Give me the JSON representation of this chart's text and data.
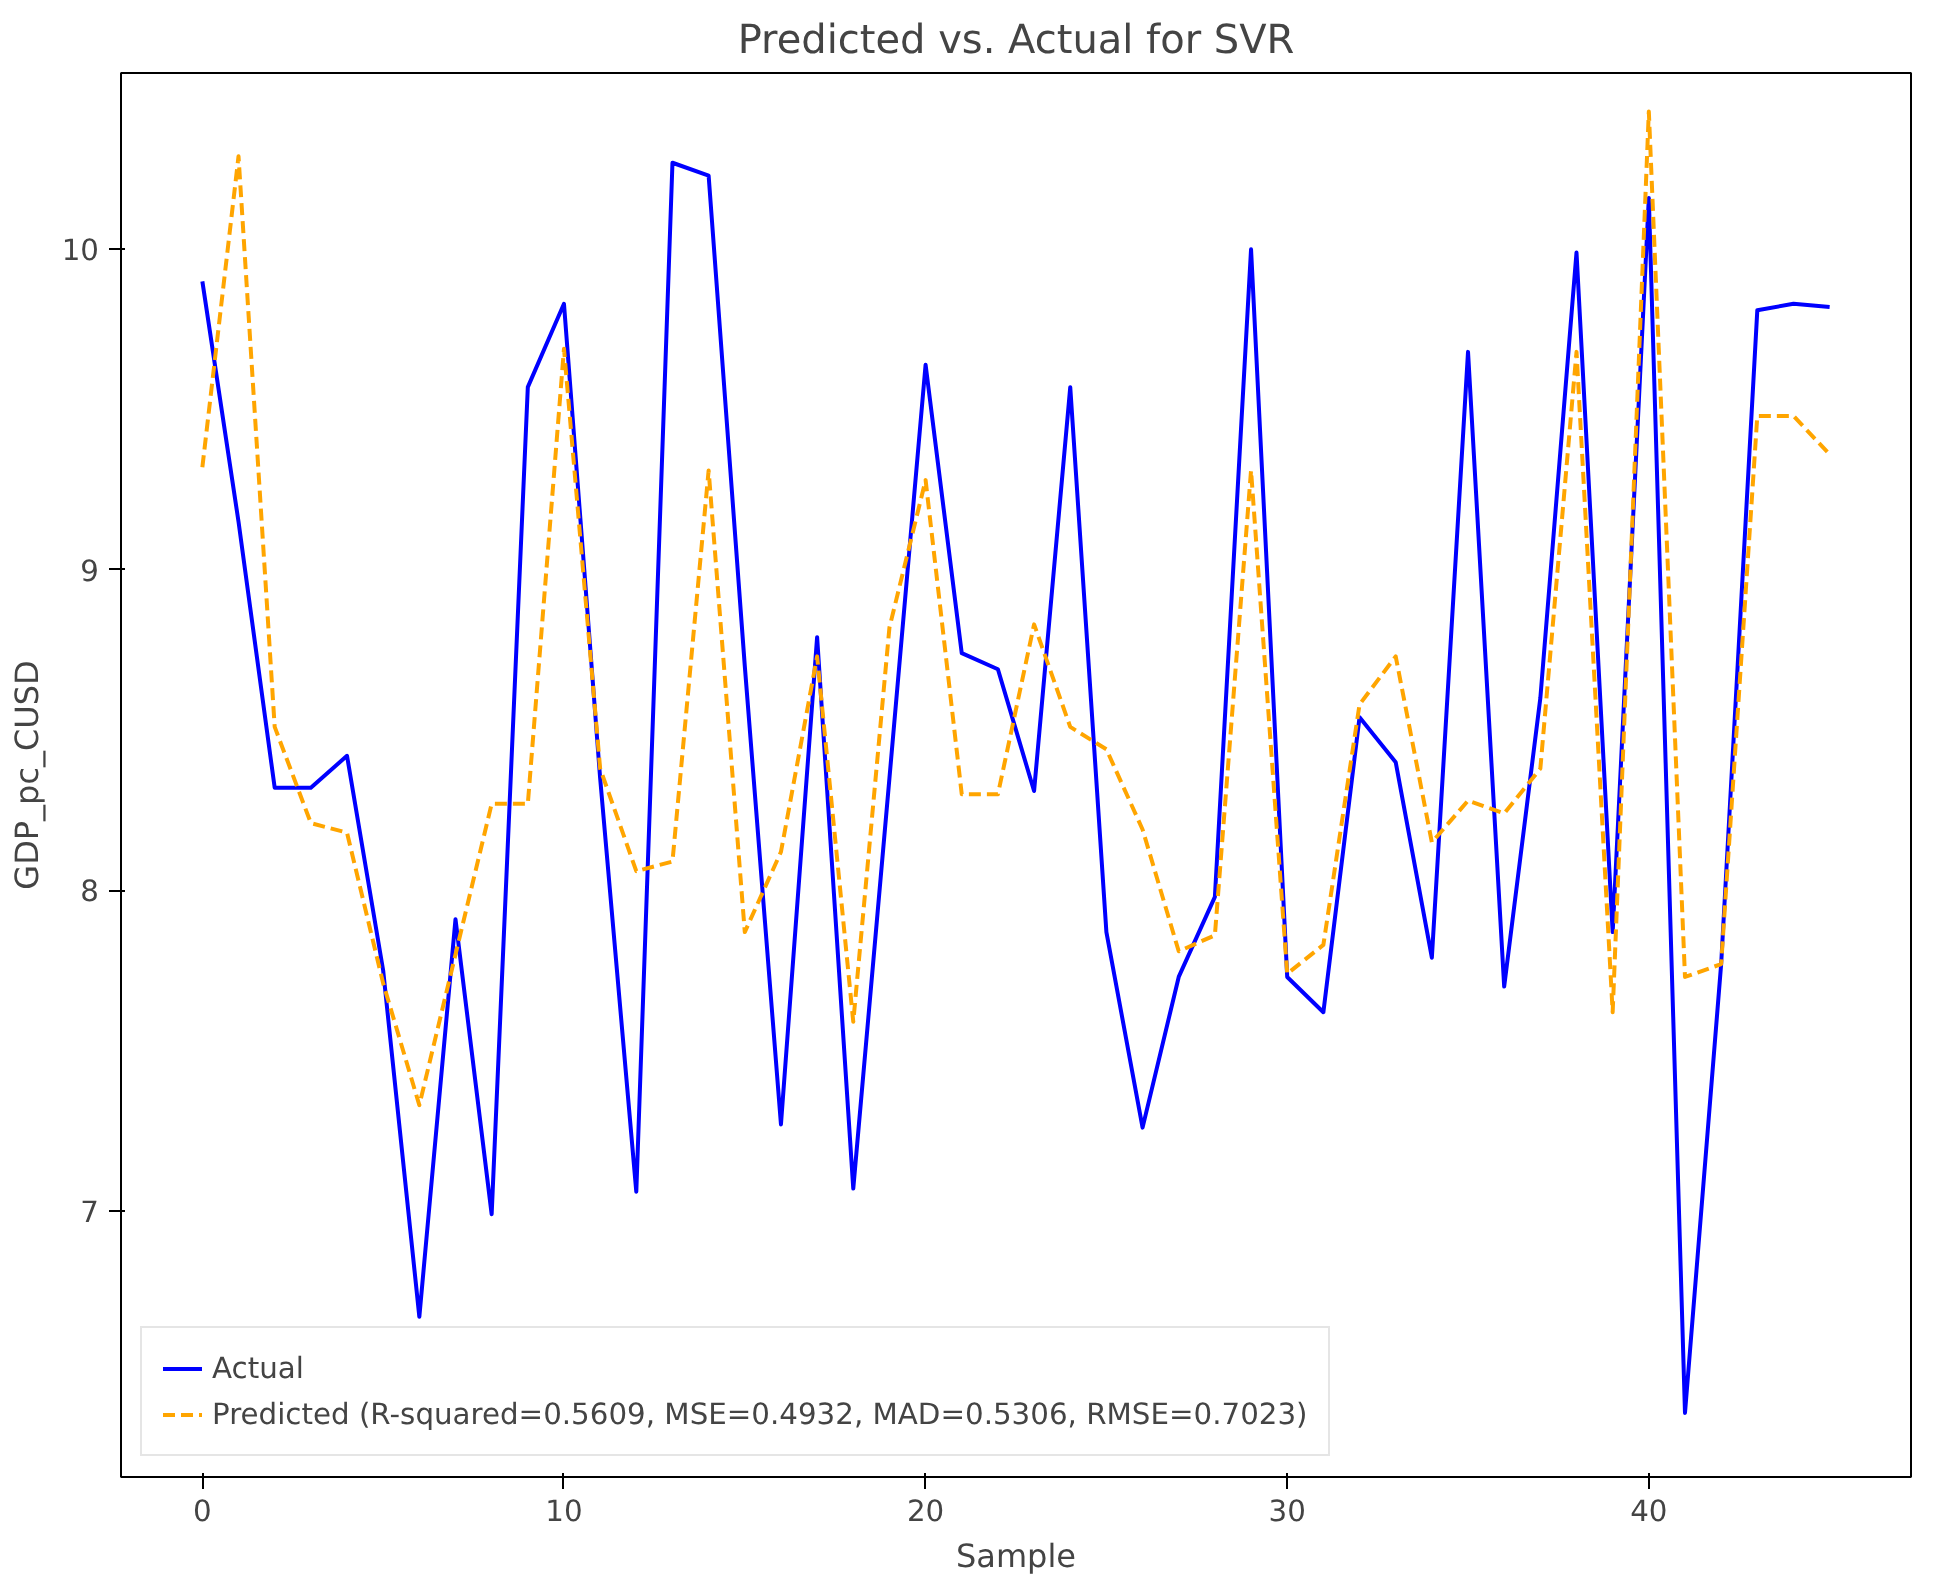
{
  "chart_data": {
    "type": "line",
    "title": "Predicted vs. Actual for SVR",
    "xlabel": "Sample",
    "ylabel": "GDP_pc_CUSD",
    "x": [
      0,
      1,
      2,
      3,
      4,
      5,
      6,
      7,
      8,
      9,
      10,
      11,
      12,
      13,
      14,
      15,
      16,
      17,
      18,
      19,
      20,
      21,
      22,
      23,
      24,
      25,
      26,
      27,
      28,
      29,
      30,
      31,
      32,
      33,
      34,
      35,
      36,
      37,
      38,
      39,
      40,
      41,
      42,
      43,
      44,
      45
    ],
    "xlim": [
      -2.25,
      47.25
    ],
    "xticks": [
      0,
      10,
      20,
      30,
      40
    ],
    "ylim": [
      6.17,
      10.55
    ],
    "yticks": [
      7,
      8,
      9,
      10
    ],
    "legend": "bottom left",
    "grid": false,
    "series": [
      {
        "name": "Actual",
        "color": "#0000ff",
        "line_style": "solid",
        "values": [
          9.9,
          9.15,
          8.32,
          8.32,
          8.42,
          7.75,
          6.67,
          7.91,
          6.99,
          9.57,
          9.83,
          8.35,
          7.06,
          10.27,
          10.23,
          8.7,
          7.27,
          8.79,
          7.07,
          8.35,
          9.64,
          8.74,
          8.69,
          8.31,
          9.57,
          7.87,
          7.26,
          7.73,
          7.98,
          10.0,
          7.73,
          7.62,
          8.54,
          8.4,
          7.79,
          9.68,
          7.7,
          8.6,
          9.99,
          7.87,
          10.16,
          6.37,
          7.77,
          9.81,
          9.83,
          9.82
        ]
      },
      {
        "name": "Predicted (R-squared=0.5609, MSE=0.4932, MAD=0.5306, RMSE=0.7023)",
        "color": "#ffa500",
        "line_style": "dashed",
        "values": [
          9.32,
          10.29,
          8.51,
          8.21,
          8.18,
          7.71,
          7.33,
          7.8,
          8.27,
          8.27,
          9.69,
          8.38,
          8.06,
          8.09,
          9.31,
          7.87,
          8.12,
          8.73,
          7.59,
          8.82,
          9.28,
          8.3,
          8.3,
          8.83,
          8.51,
          8.44,
          8.19,
          7.81,
          7.86,
          9.31,
          7.74,
          7.83,
          8.58,
          8.73,
          8.15,
          8.28,
          8.24,
          8.38,
          9.68,
          7.62,
          10.43,
          7.73,
          7.77,
          9.48,
          9.48,
          9.36
        ]
      }
    ]
  }
}
